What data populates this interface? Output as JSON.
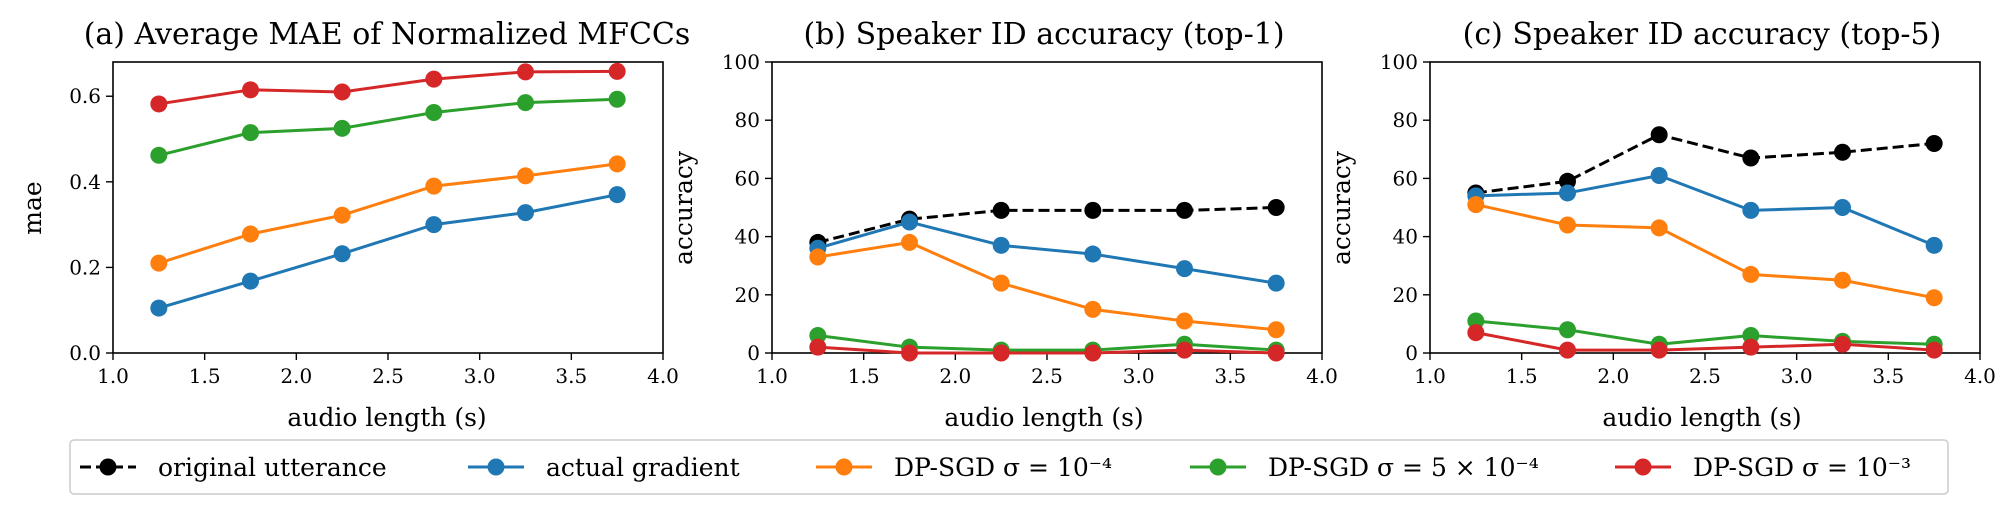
{
  "chart_data": [
    {
      "type": "line",
      "title": "(a) Average MAE of Normalized MFCCs",
      "xlabel": "audio length (s)",
      "ylabel": "mae",
      "xlim": [
        1.0,
        4.0
      ],
      "ylim": [
        0.0,
        0.68
      ],
      "xticks": [
        "1.0",
        "1.5",
        "2.0",
        "2.5",
        "3.0",
        "3.5",
        "4.0"
      ],
      "xtick_values": [
        1.0,
        1.5,
        2.0,
        2.5,
        3.0,
        3.5,
        4.0
      ],
      "yticks": [
        "0.0",
        "0.2",
        "0.4",
        "0.6"
      ],
      "ytick_values": [
        0.0,
        0.2,
        0.4,
        0.6
      ],
      "x": [
        1.25,
        1.75,
        2.25,
        2.75,
        3.25,
        3.75
      ],
      "series": [
        {
          "key": "actual",
          "values": [
            0.105,
            0.168,
            0.232,
            0.3,
            0.328,
            0.37
          ]
        },
        {
          "key": "dp1e4",
          "values": [
            0.21,
            0.278,
            0.322,
            0.39,
            0.414,
            0.442
          ]
        },
        {
          "key": "dp5e4",
          "values": [
            0.462,
            0.515,
            0.525,
            0.562,
            0.585,
            0.593
          ]
        },
        {
          "key": "dp1e3",
          "values": [
            0.582,
            0.615,
            0.61,
            0.64,
            0.657,
            0.658
          ]
        }
      ]
    },
    {
      "type": "line",
      "title": "(b) Speaker ID accuracy (top-1)",
      "xlabel": "audio length (s)",
      "ylabel": "accuracy",
      "xlim": [
        1.0,
        4.0
      ],
      "ylim": [
        0,
        100
      ],
      "xticks": [
        "1.0",
        "1.5",
        "2.0",
        "2.5",
        "3.0",
        "3.5",
        "4.0"
      ],
      "xtick_values": [
        1.0,
        1.5,
        2.0,
        2.5,
        3.0,
        3.5,
        4.0
      ],
      "yticks": [
        "0",
        "20",
        "40",
        "60",
        "80",
        "100"
      ],
      "ytick_values": [
        0,
        20,
        40,
        60,
        80,
        100
      ],
      "x": [
        1.25,
        1.75,
        2.25,
        2.75,
        3.25,
        3.75
      ],
      "series": [
        {
          "key": "original",
          "values": [
            38,
            46,
            49,
            49,
            49,
            50
          ]
        },
        {
          "key": "actual",
          "values": [
            36,
            45,
            37,
            34,
            29,
            24
          ]
        },
        {
          "key": "dp1e4",
          "values": [
            33,
            38,
            24,
            15,
            11,
            8
          ]
        },
        {
          "key": "dp5e4",
          "values": [
            6,
            2,
            1,
            1,
            3,
            1
          ]
        },
        {
          "key": "dp1e3",
          "values": [
            2,
            0,
            0,
            0,
            1,
            0
          ]
        }
      ]
    },
    {
      "type": "line",
      "title": "(c) Speaker ID accuracy (top-5)",
      "xlabel": "audio length (s)",
      "ylabel": "accuracy",
      "xlim": [
        1.0,
        4.0
      ],
      "ylim": [
        0,
        100
      ],
      "xticks": [
        "1.0",
        "1.5",
        "2.0",
        "2.5",
        "3.0",
        "3.5",
        "4.0"
      ],
      "xtick_values": [
        1.0,
        1.5,
        2.0,
        2.5,
        3.0,
        3.5,
        4.0
      ],
      "yticks": [
        "0",
        "20",
        "40",
        "60",
        "80",
        "100"
      ],
      "ytick_values": [
        0,
        20,
        40,
        60,
        80,
        100
      ],
      "x": [
        1.25,
        1.75,
        2.25,
        2.75,
        3.25,
        3.75
      ],
      "series": [
        {
          "key": "original",
          "values": [
            55,
            59,
            75,
            67,
            69,
            72
          ]
        },
        {
          "key": "actual",
          "values": [
            54,
            55,
            61,
            49,
            50,
            37
          ]
        },
        {
          "key": "dp1e4",
          "values": [
            51,
            44,
            43,
            27,
            25,
            19
          ]
        },
        {
          "key": "dp5e4",
          "values": [
            11,
            8,
            3,
            6,
            4,
            3
          ]
        },
        {
          "key": "dp1e3",
          "values": [
            7,
            1,
            1,
            2,
            3,
            1
          ]
        }
      ]
    }
  ],
  "legend": {
    "placement": "bottom",
    "items": [
      {
        "key": "original",
        "label": "original utterance",
        "color": "#000000",
        "dashed": true
      },
      {
        "key": "actual",
        "label": "actual gradient",
        "color": "#1f77b4",
        "dashed": false
      },
      {
        "key": "dp1e4",
        "label": "DP-SGD σ = 10⁻⁴",
        "color": "#ff7f0e",
        "dashed": false
      },
      {
        "key": "dp5e4",
        "label": "DP-SGD σ = 5 × 10⁻⁴",
        "color": "#2ca02c",
        "dashed": false
      },
      {
        "key": "dp1e3",
        "label": "DP-SGD σ = 10⁻³",
        "color": "#d62728",
        "dashed": false
      }
    ]
  }
}
